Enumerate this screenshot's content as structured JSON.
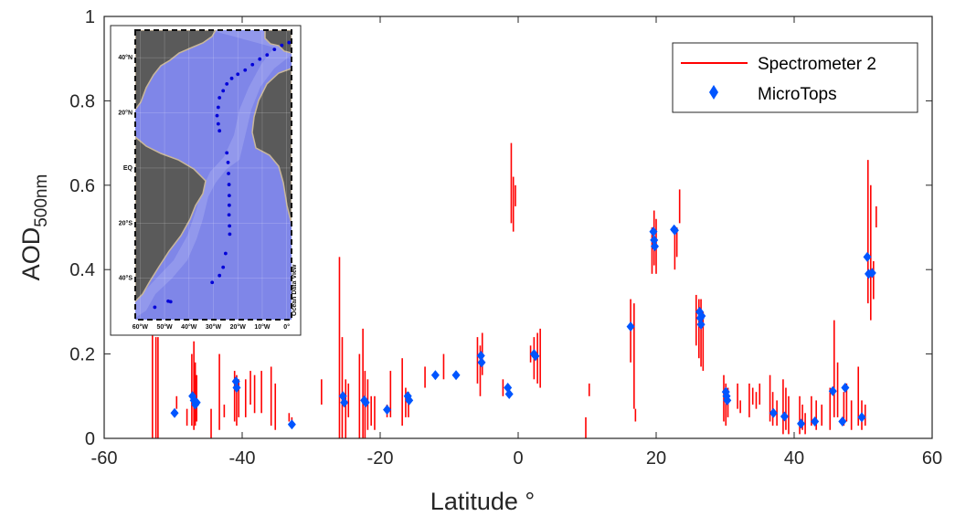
{
  "chart_data": {
    "type": "scatter",
    "xlabel": "Latitude °",
    "ylabel_main": "AOD",
    "ylabel_sub": "500nm",
    "xlim": [
      -60,
      60
    ],
    "ylim": [
      0,
      1
    ],
    "xticks": [
      -60,
      -40,
      -20,
      0,
      20,
      40,
      60
    ],
    "yticks": [
      0,
      0.2,
      0.4,
      0.6,
      0.8,
      1
    ],
    "xtick_labels": [
      "-60",
      "-40",
      "-20",
      "0",
      "20",
      "40",
      "60"
    ],
    "ytick_labels": [
      "0",
      "0.2",
      "0.4",
      "0.6",
      "0.8",
      "1"
    ],
    "grid": false,
    "legend_position": "top-right",
    "series": [
      {
        "name": "Spectrometer 2",
        "style": "vertical-segments",
        "color": "#ff0000",
        "segments": [
          [
            -53,
            0.0,
            0.27
          ],
          [
            -52.5,
            0.0,
            0.24
          ],
          [
            -52.2,
            0.0,
            0.24
          ],
          [
            -49.5,
            0.07,
            0.1
          ],
          [
            -48,
            0.03,
            0.07
          ],
          [
            -47.3,
            0.03,
            0.2
          ],
          [
            -47.0,
            0.02,
            0.23
          ],
          [
            -46.8,
            0.03,
            0.18
          ],
          [
            -46.6,
            0.04,
            0.15
          ],
          [
            -44.5,
            0.0,
            0.07
          ],
          [
            -43.3,
            0.02,
            0.2
          ],
          [
            -42.6,
            0.05,
            0.08
          ],
          [
            -41.1,
            0.04,
            0.16
          ],
          [
            -40.8,
            0.03,
            0.15
          ],
          [
            -40.5,
            0.05,
            0.14
          ],
          [
            -39.5,
            0.05,
            0.14
          ],
          [
            -38.8,
            0.08,
            0.16
          ],
          [
            -38.2,
            0.06,
            0.15
          ],
          [
            -37.2,
            0.06,
            0.16
          ],
          [
            -35.8,
            0.03,
            0.17
          ],
          [
            -35.2,
            0.02,
            0.13
          ],
          [
            -33.2,
            0.04,
            0.06
          ],
          [
            -32.8,
            0.03,
            0.05
          ],
          [
            -28.5,
            0.08,
            0.14
          ],
          [
            -25.9,
            0.0,
            0.43
          ],
          [
            -25.5,
            0.0,
            0.24
          ],
          [
            -25.0,
            0.0,
            0.14
          ],
          [
            -24.6,
            0.05,
            0.13
          ],
          [
            -23,
            0.0,
            0.2
          ],
          [
            -22.5,
            0.0,
            0.26
          ],
          [
            -22.2,
            0.0,
            0.16
          ],
          [
            -21.8,
            0.02,
            0.14
          ],
          [
            -21.3,
            0.03,
            0.1
          ],
          [
            -20.8,
            0.02,
            0.1
          ],
          [
            -19,
            0.05,
            0.08
          ],
          [
            -18.5,
            0.05,
            0.16
          ],
          [
            -16.8,
            0.03,
            0.19
          ],
          [
            -16.3,
            0.05,
            0.12
          ],
          [
            -15.9,
            0.05,
            0.11
          ],
          [
            -13.5,
            0.12,
            0.17
          ],
          [
            -10.8,
            0.14,
            0.2
          ],
          [
            -5.9,
            0.13,
            0.24
          ],
          [
            -5.5,
            0.1,
            0.22
          ],
          [
            -5.2,
            0.15,
            0.25
          ],
          [
            -2.2,
            0.1,
            0.14
          ],
          [
            -1.5,
            0.1,
            0.13
          ],
          [
            -1.0,
            0.51,
            0.7
          ],
          [
            -0.7,
            0.49,
            0.62
          ],
          [
            -0.4,
            0.55,
            0.6
          ],
          [
            1.8,
            0.18,
            0.22
          ],
          [
            2.3,
            0.14,
            0.24
          ],
          [
            2.8,
            0.13,
            0.25
          ],
          [
            3.2,
            0.12,
            0.26
          ],
          [
            9.8,
            0.0,
            0.05
          ],
          [
            10.3,
            0.1,
            0.13
          ],
          [
            16.3,
            0.18,
            0.33
          ],
          [
            16.8,
            0.07,
            0.32
          ],
          [
            17.0,
            0.04,
            0.07
          ],
          [
            19.4,
            0.39,
            0.5
          ],
          [
            19.7,
            0.41,
            0.54
          ],
          [
            20.0,
            0.39,
            0.52
          ],
          [
            22.7,
            0.4,
            0.5
          ],
          [
            23.0,
            0.43,
            0.5
          ],
          [
            23.4,
            0.51,
            0.59
          ],
          [
            25.8,
            0.22,
            0.34
          ],
          [
            26.2,
            0.19,
            0.33
          ],
          [
            26.5,
            0.17,
            0.33
          ],
          [
            26.8,
            0.16,
            0.3
          ],
          [
            29.8,
            0.04,
            0.15
          ],
          [
            30.1,
            0.03,
            0.13
          ],
          [
            30.4,
            0.05,
            0.12
          ],
          [
            31.8,
            0.07,
            0.13
          ],
          [
            32.2,
            0.06,
            0.09
          ],
          [
            33.5,
            0.05,
            0.13
          ],
          [
            34.0,
            0.08,
            0.12
          ],
          [
            34.5,
            0.07,
            0.11
          ],
          [
            35.0,
            0.08,
            0.13
          ],
          [
            36.5,
            0.04,
            0.15
          ],
          [
            36.9,
            0.03,
            0.11
          ],
          [
            37.5,
            0.03,
            0.09
          ],
          [
            38.4,
            0.01,
            0.14
          ],
          [
            38.8,
            0.02,
            0.12
          ],
          [
            39.2,
            0.01,
            0.1
          ],
          [
            40.8,
            0.01,
            0.1
          ],
          [
            41.2,
            0.02,
            0.08
          ],
          [
            41.6,
            0.01,
            0.06
          ],
          [
            42.5,
            0.03,
            0.1
          ],
          [
            43.2,
            0.02,
            0.09
          ],
          [
            44.0,
            0.03,
            0.08
          ],
          [
            45.2,
            0.02,
            0.12
          ],
          [
            45.8,
            0.05,
            0.28
          ],
          [
            46.3,
            0.05,
            0.18
          ],
          [
            47.2,
            0.03,
            0.11
          ],
          [
            47.6,
            0.04,
            0.13
          ],
          [
            48.3,
            0.02,
            0.09
          ],
          [
            49.3,
            0.03,
            0.17
          ],
          [
            49.8,
            0.02,
            0.09
          ],
          [
            50.3,
            0.03,
            0.08
          ],
          [
            50.7,
            0.32,
            0.66
          ],
          [
            51.1,
            0.28,
            0.6
          ],
          [
            51.5,
            0.33,
            0.42
          ],
          [
            51.9,
            0.5,
            0.55
          ]
        ]
      },
      {
        "name": "MicroTops",
        "style": "diamond-markers",
        "color": "#0055ff",
        "x": [
          -49.8,
          -47.2,
          -47.0,
          -46.8,
          -46.6,
          -40.9,
          -40.8,
          -32.8,
          -25.4,
          -25.2,
          -22.3,
          -22.1,
          -19,
          -16,
          -15.8,
          -12,
          -9,
          -5.4,
          -5.3,
          -1.5,
          -1.3,
          2.3,
          2.5,
          16.3,
          19.6,
          19.7,
          19.8,
          22.6,
          22.7,
          26.3,
          26.4,
          26.5,
          26.6,
          30.1,
          30.2,
          30.3,
          37,
          38.6,
          41,
          43,
          45.6,
          47,
          47.4,
          49.8,
          50.6,
          50.8,
          51.3
        ],
        "y": [
          0.06,
          0.1,
          0.09,
          0.08,
          0.085,
          0.135,
          0.12,
          0.033,
          0.1,
          0.085,
          0.09,
          0.085,
          0.068,
          0.1,
          0.09,
          0.15,
          0.15,
          0.196,
          0.18,
          0.12,
          0.105,
          0.2,
          0.195,
          0.265,
          0.49,
          0.47,
          0.455,
          0.495,
          0.493,
          0.3,
          0.285,
          0.27,
          0.29,
          0.11,
          0.1,
          0.09,
          0.06,
          0.052,
          0.035,
          0.04,
          0.112,
          0.04,
          0.12,
          0.05,
          0.43,
          0.39,
          0.392
        ]
      }
    ]
  },
  "inset_map": {
    "lat_labels": [
      "40°N",
      "20°N",
      "EQ",
      "20°S",
      "40°S"
    ],
    "lon_labels": [
      "60°W",
      "50°W",
      "40°W",
      "30°W",
      "20°W",
      "10°W",
      "0°"
    ],
    "watermark": "Ocean Data View",
    "ocean_color": "#7f86e8",
    "land_color": "#5a5a5a",
    "track_color": "#0000d8",
    "track": [
      [
        1,
        45.5
      ],
      [
        -2,
        44.5
      ],
      [
        -5,
        43
      ],
      [
        -8,
        41
      ],
      [
        -11,
        39.5
      ],
      [
        -14,
        37.5
      ],
      [
        -17,
        35.5
      ],
      [
        -20,
        34
      ],
      [
        -22.5,
        32.5
      ],
      [
        -24.5,
        30.5
      ],
      [
        -26,
        28
      ],
      [
        -27.5,
        25.5
      ],
      [
        -28,
        22
      ],
      [
        -28.5,
        19
      ],
      [
        -28,
        16
      ],
      [
        -27.5,
        13.5
      ],
      [
        -24.5,
        5.5
      ],
      [
        -24,
        2
      ],
      [
        -23.8,
        -2
      ],
      [
        -23.6,
        -6
      ],
      [
        -23.5,
        -10
      ],
      [
        -23.5,
        -13.5
      ],
      [
        -23.6,
        -17
      ],
      [
        -23.4,
        -21
      ],
      [
        -23.3,
        -24
      ],
      [
        -25,
        -31
      ],
      [
        -26,
        -36
      ],
      [
        -27.5,
        -39
      ],
      [
        -30.5,
        -41.5
      ],
      [
        -47.5,
        -48.5
      ],
      [
        -48.5,
        -48.3
      ],
      [
        -54,
        -50.5
      ]
    ]
  }
}
